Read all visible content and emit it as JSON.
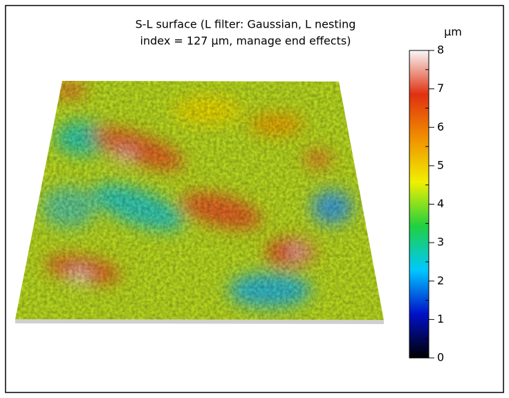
{
  "chart_data": {
    "type": "surface",
    "title": [
      "S-L surface (L filter: Gaussian, L nesting",
      "index = 127 µm, manage end effects)"
    ],
    "colorbar": {
      "label": "µm",
      "lim": [
        0,
        8
      ],
      "ticks": [
        0,
        1,
        2,
        3,
        4,
        5,
        6,
        7,
        8
      ],
      "colors": [
        "#000000",
        "#0010c8",
        "#00c8ff",
        "#20d040",
        "#f0f000",
        "#f09000",
        "#e03010",
        "#f8f8f8"
      ]
    }
  }
}
